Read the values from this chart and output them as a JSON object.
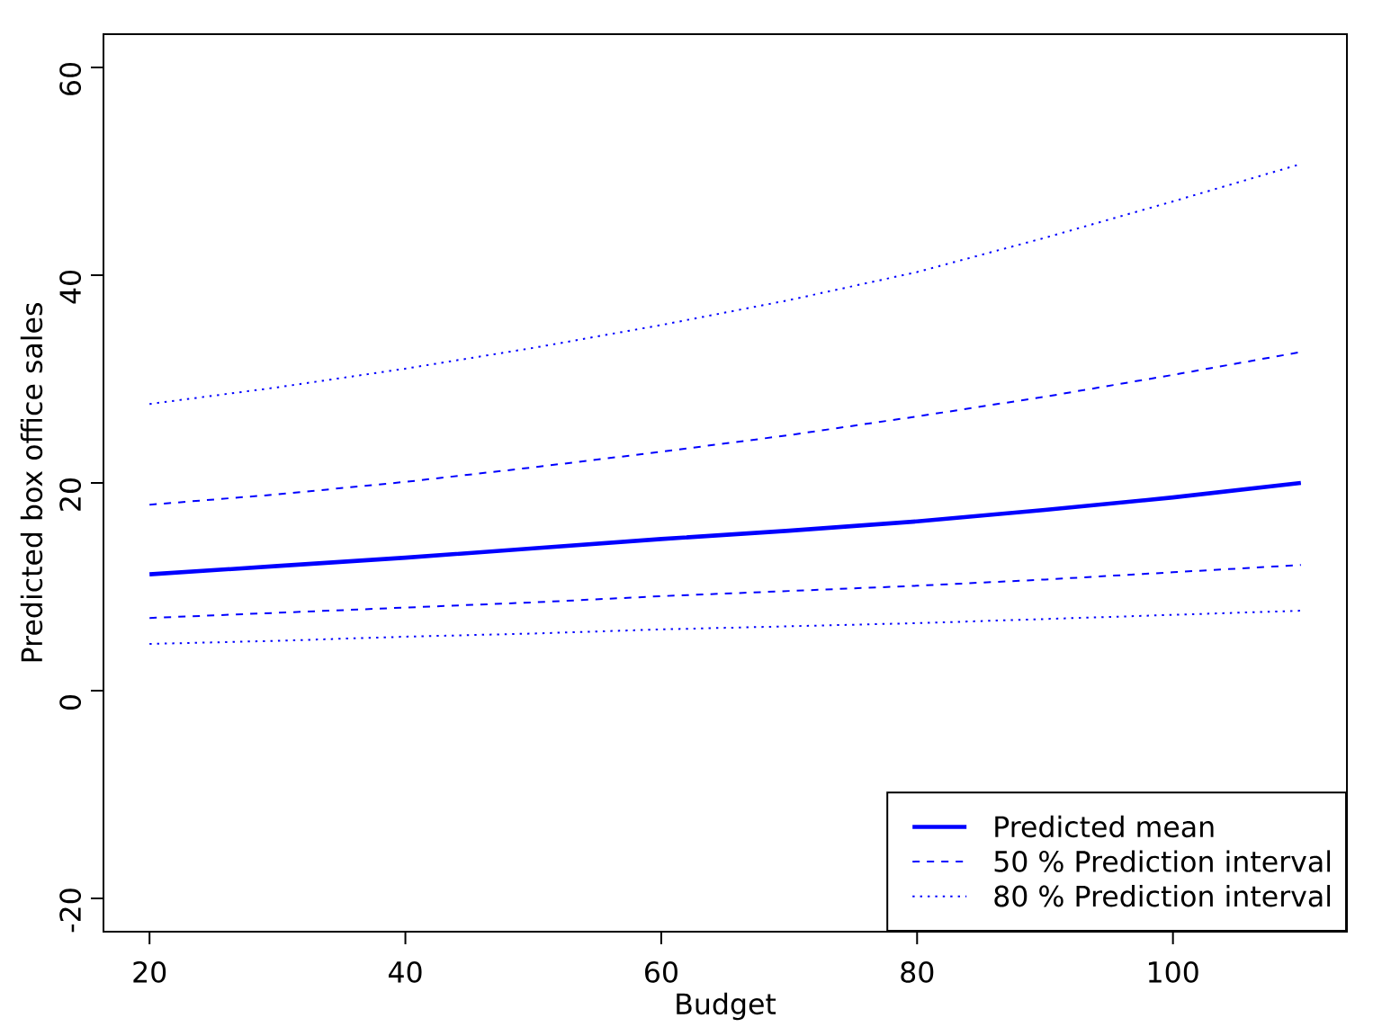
{
  "chart_data": {
    "type": "line",
    "xlabel": "Budget",
    "ylabel": "Predicted box office sales",
    "x": [
      20,
      30,
      40,
      50,
      60,
      70,
      80,
      90,
      100,
      110
    ],
    "series": [
      {
        "name": "Predicted mean",
        "color": "#0000ff",
        "line_style": "solid",
        "values": [
          11.2,
          12.0,
          12.8,
          13.7,
          14.6,
          15.4,
          16.3,
          17.4,
          18.6,
          20.0
        ]
      },
      {
        "name": "50 % Prediction interval",
        "color": "#0000ff",
        "line_style": "dashed",
        "values": [
          17.9,
          18.9,
          20.1,
          21.5,
          23.0,
          24.6,
          26.4,
          28.3,
          30.4,
          32.6
        ]
      },
      {
        "color": "#0000ff",
        "line_style": "dashed",
        "values": [
          7.0,
          7.5,
          8.0,
          8.5,
          9.1,
          9.6,
          10.1,
          10.7,
          11.4,
          12.1
        ]
      },
      {
        "name": "80 % Prediction interval",
        "color": "#0000ff",
        "line_style": "dotted",
        "values": [
          27.6,
          29.2,
          31.0,
          33.0,
          35.2,
          37.6,
          40.3,
          43.6,
          47.1,
          50.7
        ]
      },
      {
        "color": "#0000ff",
        "line_style": "dotted",
        "values": [
          4.5,
          4.8,
          5.2,
          5.5,
          5.9,
          6.2,
          6.5,
          6.9,
          7.3,
          7.7
        ]
      }
    ],
    "xlim": [
      16.4,
      113.6
    ],
    "ylim": [
      -23.2,
      63.2
    ],
    "xticks": [
      20,
      40,
      60,
      80,
      100
    ],
    "yticks": [
      -20,
      0,
      20,
      40,
      60
    ],
    "legend": "bottom right"
  }
}
